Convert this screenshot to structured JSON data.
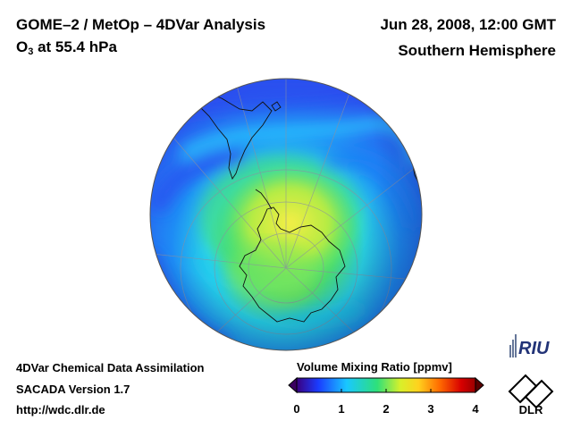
{
  "header": {
    "title_line1": "GOME–2 / MetOp – 4DVar Analysis",
    "title_line2_prefix": "O",
    "title_line2_sub": "3",
    "title_line2_suffix": " at 55.4 hPa",
    "datetime": "Jun 28, 2008, 12:00 GMT",
    "region": "Southern Hemisphere"
  },
  "footer": {
    "line1": "4DVar Chemical Data Assimilation",
    "line2": "SACADA Version 1.7",
    "line3": "http://wdc.dlr.de"
  },
  "colorbar": {
    "title": "Volume Mixing Ratio [ppmv]",
    "ticks": [
      "0",
      "1",
      "2",
      "3",
      "4"
    ],
    "range": [
      0,
      4
    ],
    "colors": [
      "#3a0080",
      "#1a3cff",
      "#19c8ff",
      "#2ee07a",
      "#d8f02a",
      "#ffd21e",
      "#ff6a00",
      "#d80000",
      "#9a0000"
    ]
  },
  "logos": {
    "riu": "RIU",
    "dlr": "DLR"
  },
  "map_colors": {
    "ocean_blue": "#1e7cf5",
    "deep_blue": "#2a4cf0",
    "cyan": "#28d0ff",
    "green": "#3ee06a",
    "yellow_green": "#c8ee3a",
    "yellow": "#f4ee4a"
  }
}
